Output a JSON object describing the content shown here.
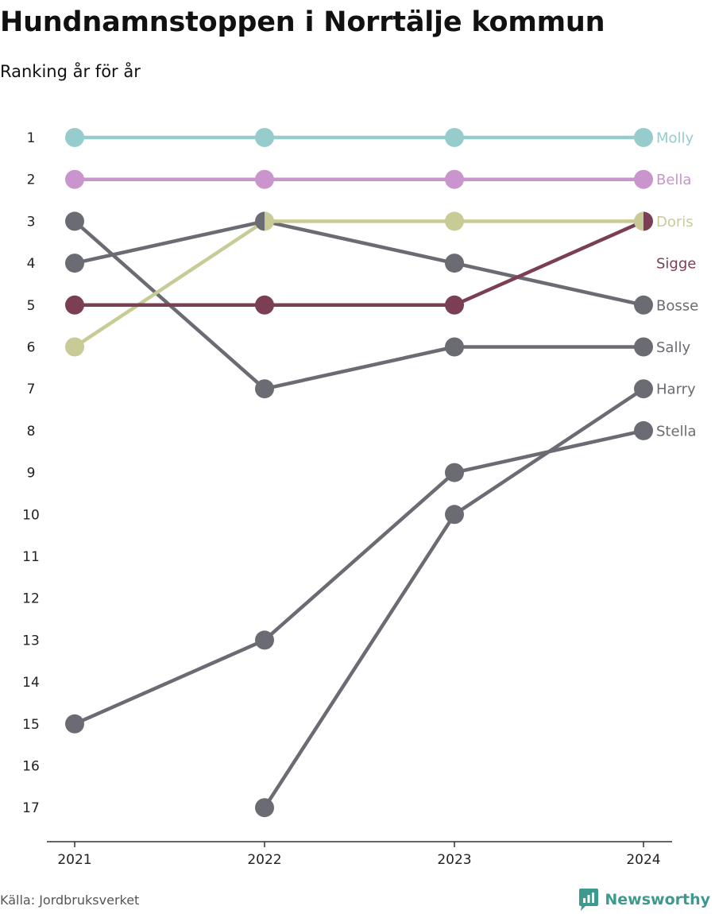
{
  "title": "Hundnamnstoppen i Norrtälje kommun",
  "subtitle": "Ranking år för år",
  "source": "Källa: Jordbruksverket",
  "brand": {
    "name": "Newsworthy",
    "icon": "newsworthy-logo-icon",
    "color": "#3e9a8e"
  },
  "chart_data": {
    "type": "line",
    "x": [
      "2021",
      "2022",
      "2023",
      "2024"
    ],
    "y_ticks": [
      1,
      2,
      3,
      4,
      5,
      6,
      7,
      8,
      9,
      10,
      11,
      12,
      13,
      14,
      15,
      16,
      17
    ],
    "y_reversed": true,
    "ylim": [
      1,
      17
    ],
    "grid": false,
    "series": [
      {
        "name": "Molly",
        "color": "#96cccc",
        "values": [
          1,
          1,
          1,
          1
        ]
      },
      {
        "name": "Bella",
        "color": "#c995cc",
        "values": [
          2,
          2,
          2,
          2
        ]
      },
      {
        "name": "Doris",
        "color": "#c9cb97",
        "values": [
          6,
          3,
          3,
          3
        ]
      },
      {
        "name": "Sigge",
        "color": "#7a3f54",
        "values": [
          5,
          5,
          5,
          3
        ]
      },
      {
        "name": "Bosse",
        "color": "#6b6b73",
        "values": [
          4,
          3,
          4,
          5
        ]
      },
      {
        "name": "Sally",
        "color": "#6b6b73",
        "values": [
          3,
          7,
          6,
          6
        ]
      },
      {
        "name": "Harry",
        "color": "#6b6b73",
        "values": [
          null,
          17,
          10,
          7
        ]
      },
      {
        "name": "Stella",
        "color": "#6b6b73",
        "values": [
          15,
          13,
          9,
          8
        ]
      }
    ]
  }
}
